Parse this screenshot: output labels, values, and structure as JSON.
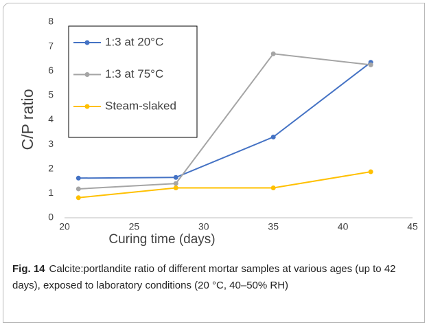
{
  "chart_data": {
    "type": "line",
    "xlabel": "Curing time (days)",
    "ylabel": "C/P ratio",
    "x": [
      21,
      28,
      35,
      42
    ],
    "series": [
      {
        "name": "1:3 at 20°C",
        "color": "#4472c4",
        "values": [
          1.62,
          1.65,
          3.3,
          6.35
        ]
      },
      {
        "name": "1:3 at 75°C",
        "color": "#a5a5a5",
        "values": [
          1.18,
          1.4,
          6.7,
          6.25
        ]
      },
      {
        "name": "Steam-slaked",
        "color": "#ffc000",
        "values": [
          0.82,
          1.22,
          1.22,
          1.88
        ]
      }
    ],
    "xlim": [
      20,
      45
    ],
    "xticks": [
      20,
      25,
      30,
      35,
      40,
      45
    ],
    "ylim": [
      0,
      8
    ],
    "yticks": [
      0,
      1,
      2,
      3,
      4,
      5,
      6,
      7,
      8
    ],
    "grid": false,
    "legend": "upper left"
  },
  "figure": {
    "label": "Fig. 14",
    "caption": "Calcite:portlandite ratio of different mortar samples at various ages (up to 42 days), exposed to laboratory conditions (20 °C, 40–50% RH)"
  }
}
